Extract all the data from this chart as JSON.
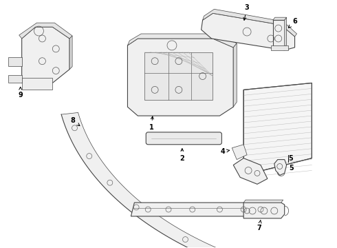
{
  "bg_color": "#ffffff",
  "line_color": "#444444",
  "label_color": "#000000",
  "figsize": [
    4.9,
    3.6
  ],
  "dpi": 100
}
